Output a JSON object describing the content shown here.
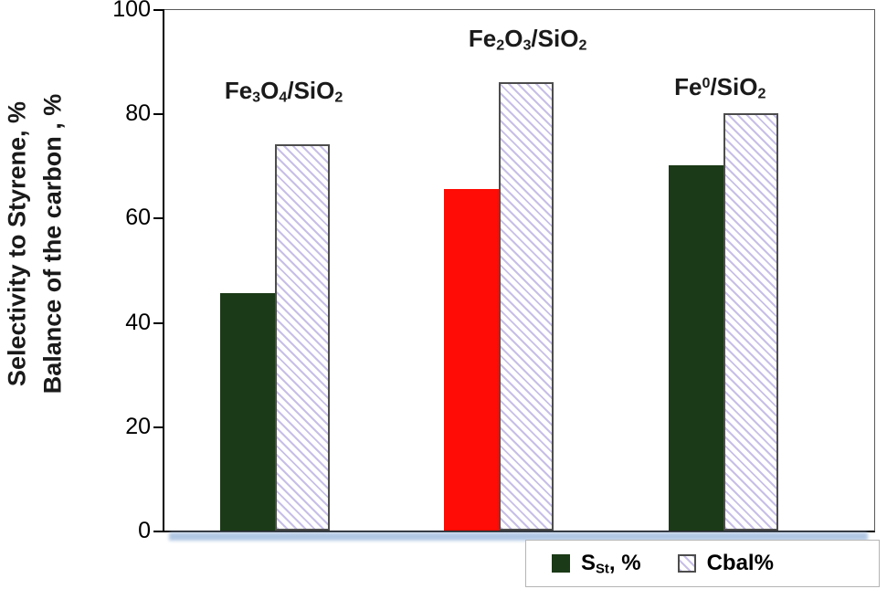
{
  "chart_data": {
    "type": "bar",
    "title": "",
    "categories": [
      "Fe3O4/SiO2",
      "Fe2O3/SiO2",
      "Fe0/SiO2"
    ],
    "categories_display": [
      "Fe_{3}O_{4}/SiO_{2}",
      "Fe_{2}O_{3}/SiO_{2}",
      "Fe^{0}/SiO_{2}"
    ],
    "series": [
      {
        "name": "SSt, %",
        "name_display": "S_{St}, %",
        "values": [
          45.5,
          65.5,
          70
        ],
        "style": "solid",
        "bar_colors": [
          "#1b3a17",
          "#fe0c05",
          "#1b3a17"
        ]
      },
      {
        "name": "Cbal%",
        "name_display": "Cbal%",
        "values": [
          74,
          86,
          80
        ],
        "style": "hatched",
        "fill": "#ffffff",
        "hatch_color": "#c8bfe7",
        "border_color": "#4d4d4d"
      }
    ],
    "ylabel_line1": "Selectivity to Styrene,  %",
    "ylabel_line2": "Balance of the carbon , %",
    "xlabel": "",
    "ylim": [
      0,
      100
    ],
    "yticks": [
      0,
      20,
      40,
      60,
      80,
      100
    ],
    "grid": false,
    "legend_position": "bottom-right",
    "axis_color": "#000000",
    "shadow_color": "#b0c7e4"
  }
}
